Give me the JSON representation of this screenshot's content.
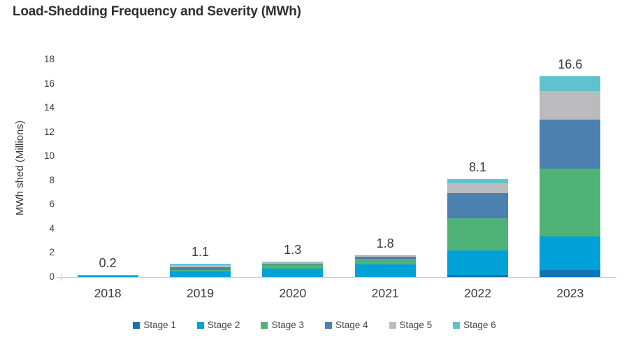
{
  "title": "Load-Shedding Frequency and Severity (MWh)",
  "chart_data": {
    "type": "bar",
    "stacked": true,
    "title": "Load-Shedding Frequency and Severity (MWh)",
    "ylabel": "MWh shed (Millions)",
    "xlabel": "",
    "ylim": [
      0,
      18
    ],
    "yticks": [
      0,
      2,
      4,
      6,
      8,
      10,
      12,
      14,
      16,
      18
    ],
    "grid": false,
    "legend_position": "bottom",
    "categories": [
      "2018",
      "2019",
      "2020",
      "2021",
      "2022",
      "2023"
    ],
    "totals": [
      "0.2",
      "1.1",
      "1.3",
      "1.8",
      "8.1",
      "16.6"
    ],
    "series": [
      {
        "name": "Stage 1",
        "color": "#1173b2",
        "values": [
          0,
          0,
          0,
          0,
          0.2,
          0.6
        ]
      },
      {
        "name": "Stage 2",
        "color": "#00a0d9",
        "values": [
          0.12,
          0.45,
          0.7,
          1.05,
          2.0,
          2.75
        ]
      },
      {
        "name": "Stage 3",
        "color": "#4fb377",
        "values": [
          0,
          0.15,
          0.35,
          0.45,
          2.65,
          5.6
        ]
      },
      {
        "name": "Stage 4",
        "color": "#4c81af",
        "values": [
          0,
          0.2,
          0.05,
          0.2,
          2.1,
          4.1
        ]
      },
      {
        "name": "Stage 5",
        "color": "#bbbbbd",
        "values": [
          0,
          0.2,
          0.12,
          0.06,
          0.8,
          2.35
        ]
      },
      {
        "name": "Stage 6",
        "color": "#5fc3cd",
        "values": [
          0.08,
          0.1,
          0.08,
          0.04,
          0.35,
          1.2
        ]
      }
    ]
  }
}
